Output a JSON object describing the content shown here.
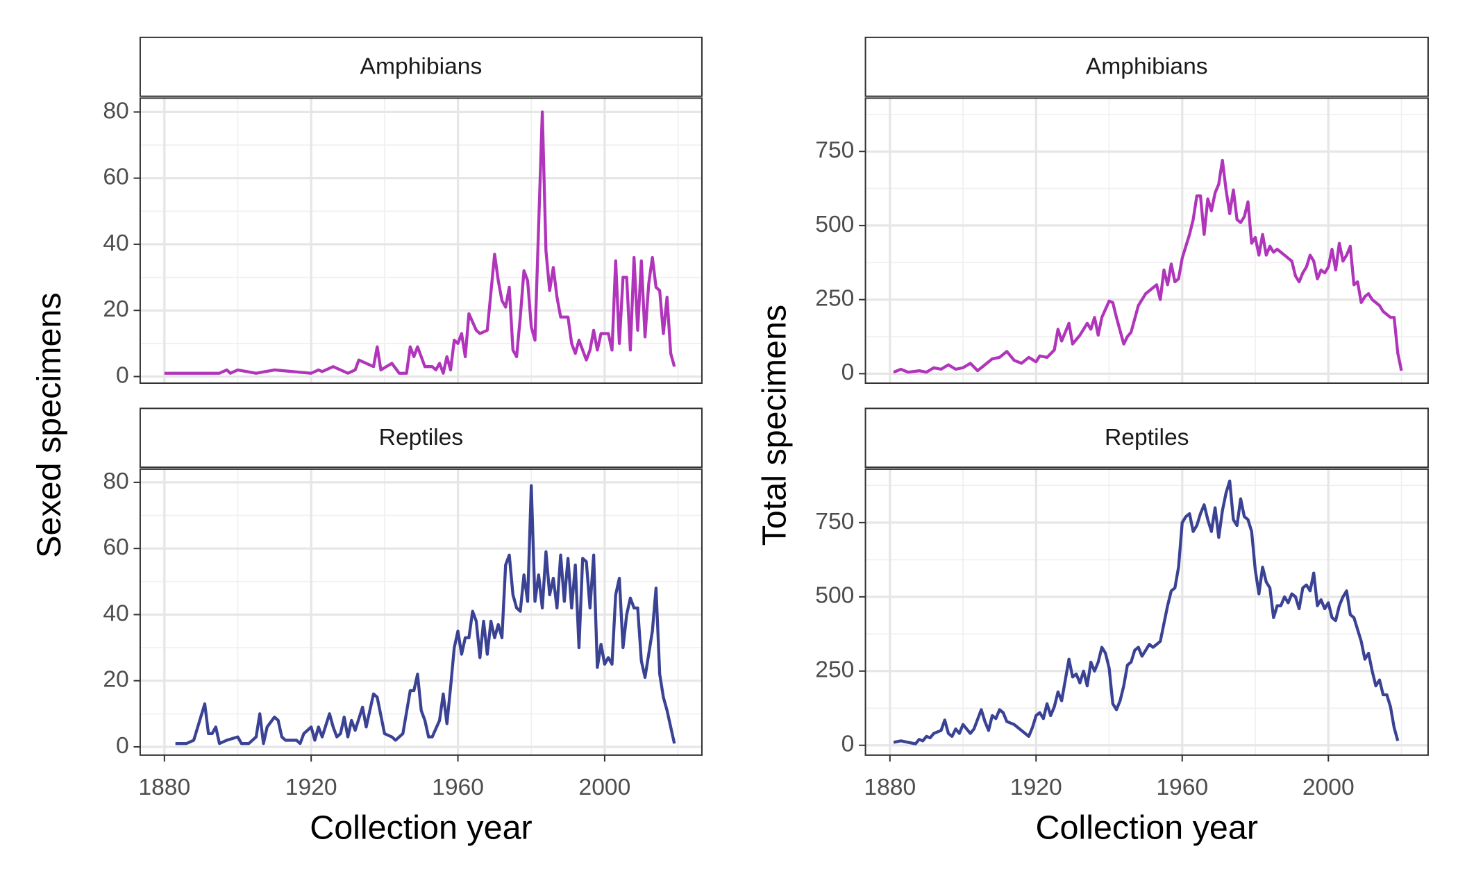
{
  "chart_data": [
    {
      "type": "line",
      "title": "Amphibians",
      "y_label": "Sexed specimens",
      "color": "#b035bb",
      "x": [
        1880,
        1885,
        1890,
        1895,
        1897,
        1898,
        1900,
        1905,
        1910,
        1920,
        1922,
        1923,
        1926,
        1930,
        1932,
        1933,
        1937,
        1938,
        1939,
        1942,
        1944,
        1946,
        1947,
        1948,
        1949,
        1951,
        1953,
        1954,
        1955,
        1956,
        1957,
        1958,
        1959,
        1960,
        1961,
        1962,
        1963,
        1965,
        1966,
        1968,
        1970,
        1971,
        1972,
        1973,
        1974,
        1975,
        1976,
        1977,
        1978,
        1979,
        1980,
        1981,
        1983,
        1984,
        1985,
        1986,
        1987,
        1988,
        1990,
        1991,
        1992,
        1993,
        1995,
        1996,
        1997,
        1998,
        1999,
        2001,
        2002,
        2003,
        2004,
        2005,
        2006,
        2007,
        2008,
        2009,
        2010,
        2011,
        2012,
        2013,
        2014,
        2015,
        2016,
        2017,
        2018,
        2019
      ],
      "values": [
        1,
        1,
        1,
        1,
        2,
        1,
        2,
        1,
        2,
        1,
        2,
        1.5,
        3,
        1,
        2,
        5,
        3,
        9,
        2,
        4,
        1,
        1,
        9,
        6,
        9,
        3,
        3,
        2,
        4,
        1,
        6,
        2,
        11,
        10,
        13,
        6,
        19,
        14,
        13,
        14,
        37,
        29,
        23,
        21,
        27,
        8,
        6,
        18,
        32,
        29,
        15,
        11,
        80,
        38,
        26,
        33,
        24,
        18,
        18,
        10,
        7,
        11,
        5,
        8,
        14,
        8,
        13,
        13,
        8,
        35,
        10,
        30,
        30,
        8,
        36,
        14,
        35,
        12,
        28,
        36,
        27,
        26,
        13,
        24,
        7,
        3
      ],
      "xlim": [
        1873.4,
        2026.5
      ],
      "ylim": [
        -2,
        84.2
      ],
      "xticks": [
        1880,
        1920,
        1960,
        2000
      ],
      "yticks": [
        0,
        20,
        40,
        60,
        80
      ],
      "grid": true
    },
    {
      "type": "line",
      "title": "Reptiles",
      "x_label": "Collection year",
      "color": "#3a4294",
      "x": [
        1883,
        1886,
        1888,
        1891,
        1892,
        1893,
        1894,
        1895,
        1897,
        1900,
        1901,
        1903,
        1905,
        1906,
        1907,
        1908,
        1910,
        1911,
        1912,
        1913,
        1916,
        1917,
        1918,
        1920,
        1921,
        1922,
        1923,
        1925,
        1926,
        1927,
        1928,
        1929,
        1930,
        1931,
        1932,
        1934,
        1935,
        1937,
        1938,
        1940,
        1942,
        1943,
        1945,
        1947,
        1948,
        1949,
        1950,
        1951,
        1952,
        1953,
        1955,
        1956,
        1957,
        1958,
        1959,
        1960,
        1961,
        1962,
        1963,
        1964,
        1965,
        1966,
        1967,
        1968,
        1969,
        1970,
        1971,
        1972,
        1973,
        1974,
        1975,
        1976,
        1977,
        1978,
        1979,
        1980,
        1981,
        1982,
        1983,
        1984,
        1985,
        1986,
        1987,
        1988,
        1989,
        1990,
        1991,
        1992,
        1993,
        1994,
        1995,
        1996,
        1997,
        1998,
        1999,
        2000,
        2001,
        2002,
        2003,
        2004,
        2005,
        2006,
        2007,
        2008,
        2009,
        2010,
        2011,
        2012,
        2013,
        2014,
        2015,
        2016,
        2017,
        2018,
        2019
      ],
      "values": [
        1,
        1,
        2,
        13,
        4,
        4,
        6,
        1,
        2,
        3,
        1,
        1,
        3,
        10,
        1,
        6,
        9,
        8,
        3,
        2,
        2,
        1,
        4,
        6,
        2,
        6,
        3,
        10,
        6,
        3,
        4,
        9,
        3,
        8,
        5,
        12,
        6,
        16,
        15,
        4,
        3,
        2,
        4,
        17,
        17,
        22,
        11,
        8,
        3,
        3,
        8,
        16,
        7,
        18,
        30,
        35,
        28,
        33,
        33,
        41,
        38,
        27,
        38,
        28,
        38,
        33,
        37,
        33,
        55,
        58,
        46,
        42,
        41,
        52,
        44,
        79,
        44,
        52,
        42,
        59,
        46,
        51,
        42,
        58,
        44,
        57,
        42,
        55,
        30,
        57,
        56,
        42,
        58,
        24,
        31,
        25,
        27,
        25,
        46,
        51,
        30,
        40,
        45,
        42,
        42,
        26,
        21,
        28,
        35,
        48,
        22,
        15,
        11,
        6,
        1
      ],
      "xlim": [
        1873.4,
        2026.5
      ],
      "ylim": [
        -2.5,
        84
      ],
      "xticks": [
        1880,
        1920,
        1960,
        2000
      ],
      "yticks": [
        0,
        20,
        40,
        60,
        80
      ],
      "grid": true
    },
    {
      "type": "line",
      "title": "Amphibians",
      "y_label": "Total specimens",
      "color": "#b035bb",
      "x": [
        1881,
        1883,
        1885,
        1888,
        1890,
        1892,
        1894,
        1896,
        1898,
        1900,
        1902,
        1904,
        1906,
        1908,
        1910,
        1912,
        1914,
        1916,
        1918,
        1920,
        1921,
        1923,
        1925,
        1926,
        1927,
        1929,
        1930,
        1932,
        1934,
        1935,
        1936,
        1937,
        1938,
        1940,
        1941,
        1942,
        1944,
        1945,
        1946,
        1948,
        1950,
        1951,
        1953,
        1954,
        1955,
        1956,
        1957,
        1958,
        1959,
        1960,
        1961,
        1962,
        1963,
        1964,
        1965,
        1966,
        1967,
        1968,
        1969,
        1970,
        1971,
        1972,
        1973,
        1974,
        1975,
        1976,
        1977,
        1978,
        1979,
        1980,
        1981,
        1982,
        1983,
        1984,
        1985,
        1986,
        1987,
        1988,
        1990,
        1991,
        1992,
        1993,
        1994,
        1995,
        1996,
        1997,
        1998,
        1999,
        2000,
        2001,
        2002,
        2003,
        2004,
        2005,
        2006,
        2007,
        2008,
        2009,
        2010,
        2011,
        2012,
        2013,
        2014,
        2015,
        2016,
        2017,
        2018,
        2019,
        2020
      ],
      "values": [
        5,
        15,
        5,
        10,
        5,
        20,
        15,
        30,
        15,
        20,
        35,
        10,
        30,
        50,
        55,
        75,
        45,
        35,
        55,
        40,
        60,
        55,
        80,
        150,
        110,
        170,
        100,
        130,
        170,
        150,
        190,
        130,
        190,
        245,
        240,
        190,
        100,
        125,
        140,
        230,
        270,
        280,
        300,
        250,
        350,
        300,
        370,
        310,
        320,
        390,
        430,
        470,
        520,
        600,
        600,
        470,
        590,
        550,
        610,
        640,
        720,
        620,
        540,
        620,
        520,
        510,
        530,
        580,
        440,
        460,
        400,
        470,
        400,
        430,
        410,
        420,
        410,
        400,
        380,
        330,
        310,
        340,
        360,
        400,
        380,
        320,
        350,
        340,
        360,
        420,
        350,
        440,
        380,
        400,
        430,
        300,
        310,
        240,
        260,
        270,
        250,
        240,
        230,
        210,
        200,
        190,
        190,
        70,
        10
      ],
      "xlim": [
        1873.3,
        2027.3
      ],
      "ylim": [
        -32,
        930
      ],
      "xticks": [
        1880,
        1920,
        1960,
        2000
      ],
      "yticks": [
        0,
        250,
        500,
        750
      ],
      "grid": true
    },
    {
      "type": "line",
      "title": "Reptiles",
      "x_label": "Collection year",
      "color": "#3a4294",
      "x": [
        1881,
        1883,
        1885,
        1887,
        1888,
        1889,
        1890,
        1891,
        1892,
        1894,
        1895,
        1896,
        1897,
        1898,
        1899,
        1900,
        1902,
        1903,
        1905,
        1906,
        1907,
        1908,
        1909,
        1910,
        1911,
        1912,
        1914,
        1916,
        1918,
        1919,
        1920,
        1921,
        1922,
        1923,
        1924,
        1925,
        1926,
        1927,
        1928,
        1929,
        1930,
        1931,
        1932,
        1933,
        1934,
        1935,
        1936,
        1937,
        1938,
        1939,
        1940,
        1941,
        1942,
        1943,
        1944,
        1945,
        1946,
        1947,
        1948,
        1949,
        1950,
        1951,
        1952,
        1953,
        1954,
        1955,
        1956,
        1957,
        1958,
        1959,
        1960,
        1961,
        1962,
        1963,
        1964,
        1965,
        1966,
        1967,
        1968,
        1969,
        1970,
        1971,
        1972,
        1973,
        1974,
        1975,
        1976,
        1977,
        1978,
        1979,
        1980,
        1981,
        1982,
        1983,
        1984,
        1985,
        1986,
        1987,
        1988,
        1989,
        1990,
        1991,
        1992,
        1993,
        1994,
        1995,
        1996,
        1997,
        1998,
        1999,
        2000,
        2001,
        2002,
        2003,
        2004,
        2005,
        2006,
        2007,
        2008,
        2009,
        2010,
        2011,
        2012,
        2013,
        2014,
        2015,
        2016,
        2017,
        2018,
        2019
      ],
      "values": [
        10,
        15,
        10,
        5,
        20,
        15,
        30,
        25,
        40,
        50,
        85,
        40,
        30,
        55,
        40,
        70,
        40,
        55,
        120,
        80,
        50,
        100,
        90,
        120,
        110,
        80,
        70,
        50,
        30,
        60,
        100,
        110,
        90,
        140,
        100,
        130,
        180,
        150,
        220,
        290,
        230,
        240,
        210,
        250,
        200,
        280,
        250,
        280,
        330,
        310,
        260,
        140,
        120,
        150,
        200,
        270,
        280,
        320,
        330,
        300,
        320,
        340,
        330,
        340,
        350,
        410,
        470,
        520,
        530,
        600,
        750,
        770,
        780,
        720,
        740,
        780,
        810,
        760,
        720,
        800,
        700,
        790,
        850,
        890,
        760,
        740,
        830,
        770,
        760,
        720,
        590,
        510,
        600,
        550,
        530,
        430,
        470,
        470,
        500,
        480,
        510,
        500,
        460,
        530,
        540,
        520,
        580,
        470,
        490,
        460,
        480,
        430,
        420,
        470,
        500,
        520,
        440,
        430,
        390,
        350,
        290,
        310,
        250,
        200,
        220,
        170,
        170,
        130,
        60,
        15
      ],
      "xlim": [
        1873.3,
        2027.3
      ],
      "ylim": [
        -33,
        930
      ],
      "xticks": [
        1880,
        1920,
        1960,
        2000
      ],
      "yticks": [
        0,
        250,
        500,
        750
      ],
      "grid": true
    }
  ]
}
